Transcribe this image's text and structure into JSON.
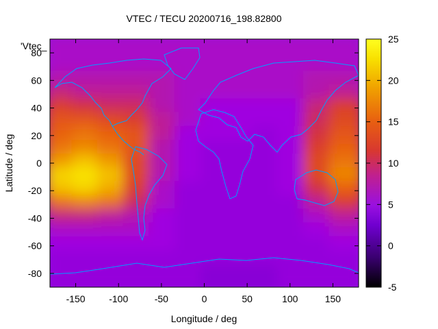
{
  "chart_data": {
    "type": "heatmap",
    "title": "VTEC / TECU 20200716_198.82800",
    "xlabel": "Longitude / deg",
    "ylabel": "Latitude / deg",
    "xlim": [
      -180,
      180
    ],
    "ylim": [
      -90,
      90
    ],
    "x_ticks": [
      -150,
      -100,
      -50,
      0,
      50,
      100,
      150
    ],
    "y_ticks": [
      -80,
      -60,
      -40,
      -20,
      0,
      20,
      40,
      60,
      80
    ],
    "colorbar": {
      "range": [
        -5,
        25
      ],
      "ticks": [
        -5,
        0,
        5,
        10,
        15,
        20,
        25
      ],
      "palette": [
        "#000000",
        "#3a0070",
        "#7a00d0",
        "#a000e0",
        "#c0208f",
        "#d83830",
        "#e86010",
        "#f0a000",
        "#f8e000",
        "#ffff20"
      ]
    },
    "legend_text": "'Vtec_",
    "grid": false,
    "overlay": "world coastlines",
    "overlay_color": "#00a0ff",
    "note": "Values approximate — read from the color scale",
    "lat_rows": [
      -85,
      -75,
      -65,
      -55,
      -45,
      -35,
      -25,
      -15,
      -5,
      5,
      15,
      25,
      35,
      45,
      55,
      65,
      75,
      85
    ],
    "lon_cols": [
      -165,
      -135,
      -105,
      -75,
      -45,
      -15,
      15,
      45,
      75,
      105,
      135,
      165
    ],
    "values": [
      [
        4,
        4,
        4,
        4,
        4,
        4,
        3,
        3,
        3,
        4,
        4,
        4
      ],
      [
        4,
        4,
        4,
        4,
        4,
        4,
        3,
        3,
        3,
        4,
        4,
        4
      ],
      [
        4,
        4,
        4,
        4,
        4,
        4,
        4,
        4,
        4,
        4,
        4,
        4
      ],
      [
        5,
        5,
        5,
        5,
        5,
        4,
        4,
        4,
        4,
        4,
        4,
        5
      ],
      [
        6,
        6,
        6,
        6,
        5,
        4,
        4,
        4,
        4,
        4,
        5,
        6
      ],
      [
        9,
        9,
        8,
        7,
        5,
        4,
        4,
        4,
        4,
        4,
        6,
        8
      ],
      [
        16,
        17,
        16,
        10,
        6,
        4,
        4,
        4,
        4,
        4,
        8,
        12
      ],
      [
        20,
        21,
        19,
        12,
        6,
        4,
        4,
        4,
        4,
        5,
        11,
        15
      ],
      [
        21,
        22,
        20,
        13,
        7,
        5,
        4,
        4,
        4,
        5,
        13,
        17
      ],
      [
        18,
        20,
        18,
        13,
        7,
        5,
        4,
        4,
        4,
        5,
        13,
        16
      ],
      [
        16,
        17,
        16,
        14,
        7,
        5,
        4,
        4,
        4,
        5,
        12,
        15
      ],
      [
        15,
        16,
        15,
        14,
        8,
        5,
        5,
        5,
        4,
        5,
        11,
        14
      ],
      [
        14,
        14,
        13,
        12,
        8,
        6,
        5,
        5,
        5,
        5,
        10,
        13
      ],
      [
        12,
        11,
        10,
        10,
        7,
        6,
        5,
        5,
        5,
        5,
        9,
        12
      ],
      [
        9,
        8,
        8,
        8,
        7,
        6,
        6,
        6,
        6,
        6,
        7,
        8
      ],
      [
        7,
        7,
        7,
        7,
        7,
        6,
        6,
        6,
        6,
        6,
        7,
        7
      ],
      [
        6,
        6,
        6,
        6,
        6,
        6,
        6,
        6,
        6,
        6,
        6,
        6
      ],
      [
        6,
        6,
        6,
        6,
        6,
        6,
        6,
        6,
        6,
        6,
        6,
        6
      ]
    ]
  }
}
